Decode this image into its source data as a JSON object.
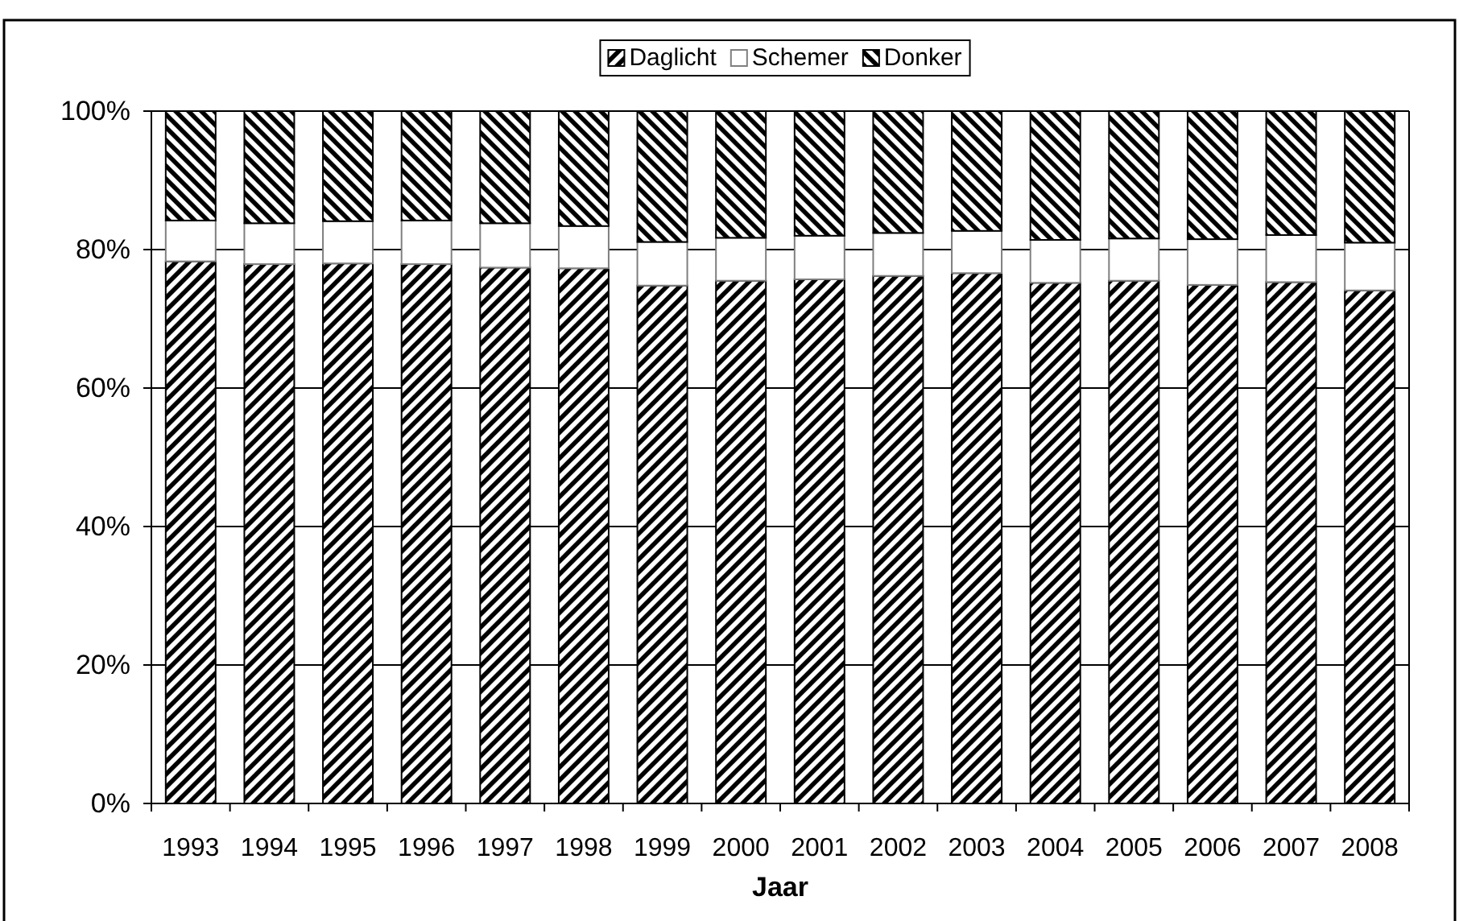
{
  "chart_data": {
    "type": "bar",
    "stacked": true,
    "xlabel": "Jaar",
    "categories": [
      "1993",
      "1994",
      "1995",
      "1996",
      "1997",
      "1998",
      "1999",
      "2000",
      "2001",
      "2002",
      "2003",
      "2004",
      "2005",
      "2006",
      "2007",
      "2008"
    ],
    "series": [
      {
        "name": "Daglicht",
        "color": "#000000",
        "values": [
          78.3,
          77.9,
          78.0,
          77.9,
          77.4,
          77.3,
          74.8,
          75.5,
          75.7,
          76.2,
          76.6,
          75.2,
          75.5,
          74.9,
          75.3,
          74.1
        ]
      },
      {
        "name": "Schemer",
        "color": "#ffffff",
        "values": [
          5.9,
          5.9,
          6.1,
          6.3,
          6.4,
          6.1,
          6.3,
          6.2,
          6.3,
          6.2,
          6.1,
          6.2,
          6.1,
          6.6,
          6.8,
          6.9
        ]
      },
      {
        "name": "Donker",
        "color": "#000000",
        "values": [
          15.8,
          16.2,
          15.9,
          15.8,
          16.2,
          16.6,
          18.9,
          18.3,
          18.0,
          17.6,
          17.3,
          18.6,
          18.4,
          18.5,
          17.9,
          19.0
        ]
      }
    ],
    "ylim": [
      0,
      100
    ],
    "yticks": [
      {
        "value": 0,
        "label": "0%"
      },
      {
        "value": 20,
        "label": "20%"
      },
      {
        "value": 40,
        "label": "40%"
      },
      {
        "value": 60,
        "label": "60%"
      },
      {
        "value": 80,
        "label": "80%"
      },
      {
        "value": 100,
        "label": "100%"
      }
    ],
    "grid": "y",
    "legend": "top"
  }
}
